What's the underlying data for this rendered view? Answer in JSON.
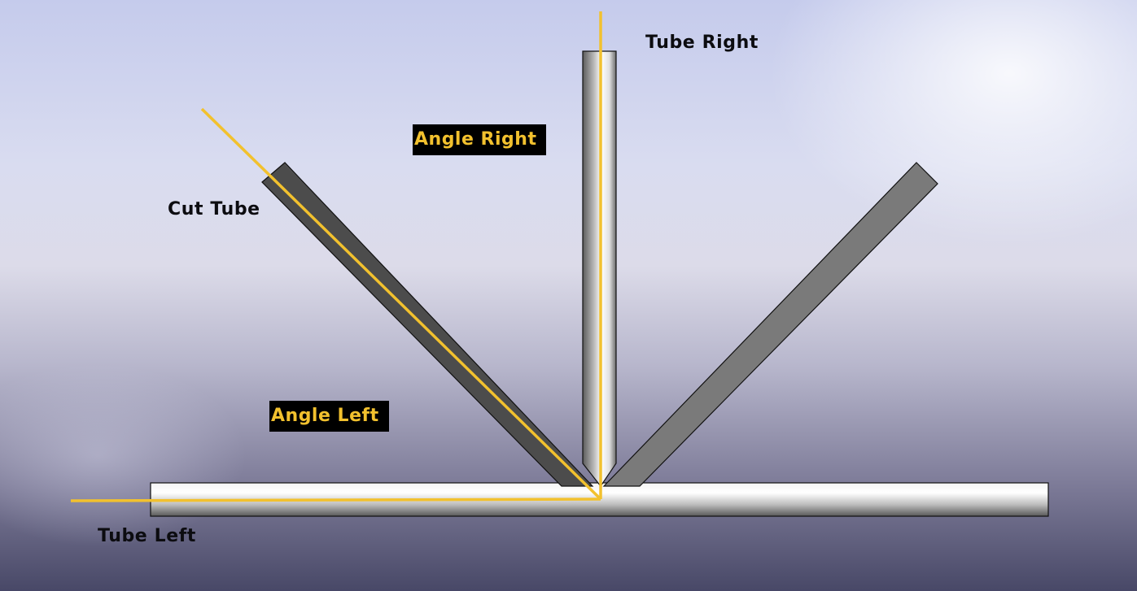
{
  "labels": {
    "tube_right": "Tube Right",
    "cut_tube": "Cut Tube",
    "tube_left": "Tube Left",
    "angle_right": "Angle Right",
    "angle_left": "Angle Left"
  },
  "colors": {
    "guide_line": "#f2c12e",
    "badge_background": "#000000",
    "label_text": "#0c0c10"
  }
}
